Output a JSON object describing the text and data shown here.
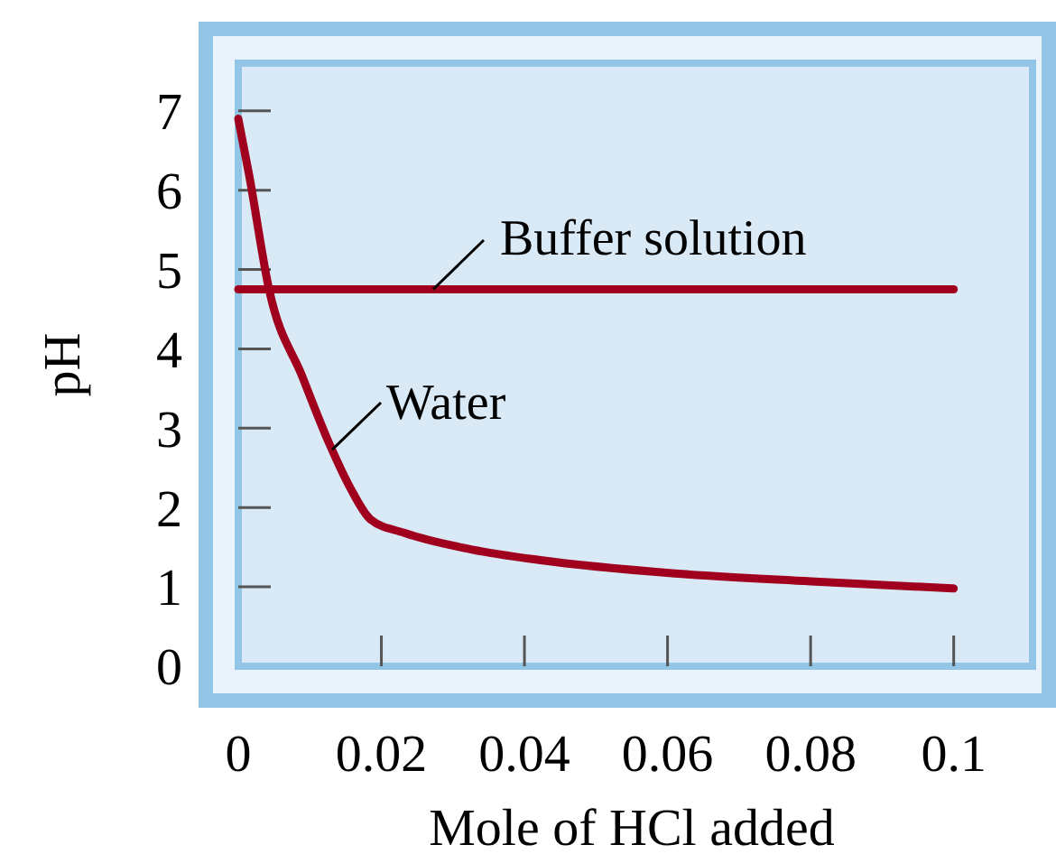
{
  "chart_data": {
    "type": "line",
    "xlabel": "Mole of HCl added",
    "ylabel": "pH",
    "xlim": [
      0,
      0.109
    ],
    "ylim": [
      0,
      7.6
    ],
    "xticks": [
      0,
      0.02,
      0.04,
      0.06,
      0.08,
      0.1
    ],
    "yticks": [
      0,
      1,
      2,
      3,
      4,
      5,
      6,
      7
    ],
    "marker": "none",
    "line_style": "solid",
    "series": [
      {
        "name": "Buffer solution",
        "color": "#a0001e",
        "x": [
          0,
          0.1
        ],
        "values": [
          4.75,
          4.75
        ]
      },
      {
        "name": "Water",
        "color": "#a0001e",
        "x": [
          0,
          0.0015,
          0.0043,
          0.009,
          0.0128,
          0.0157,
          0.0185,
          0.0232,
          0.0327,
          0.042,
          0.061,
          0.08,
          0.1
        ],
        "values": [
          6.9,
          6.2,
          4.75,
          3.64,
          2.79,
          2.24,
          1.85,
          1.68,
          1.47,
          1.34,
          1.17,
          1.07,
          0.98
        ]
      }
    ]
  }
}
